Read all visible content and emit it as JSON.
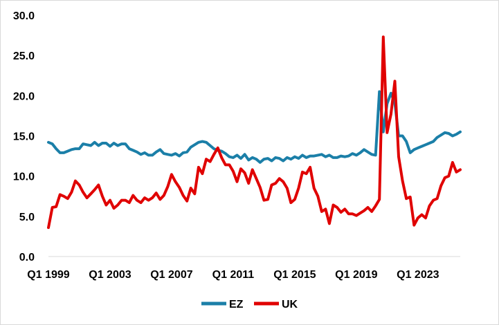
{
  "chart_data": {
    "type": "line",
    "title": "",
    "xlabel": "",
    "ylabel": "",
    "ylim": [
      0,
      30
    ],
    "y_ticks": [
      "0.0",
      "5.0",
      "10.0",
      "15.0",
      "20.0",
      "25.0",
      "30.0"
    ],
    "x_ticks": [
      {
        "label": "Q1 1999",
        "index": 0
      },
      {
        "label": "Q1 2003",
        "index": 16
      },
      {
        "label": "Q1 2007",
        "index": 32
      },
      {
        "label": "Q1 2011",
        "index": 48
      },
      {
        "label": "Q1 2015",
        "index": 64
      },
      {
        "label": "Q1 2019",
        "index": 80
      },
      {
        "label": "Q1 2023",
        "index": 96
      }
    ],
    "grid": false,
    "legend_position": "bottom",
    "series": [
      {
        "name": "EZ",
        "color": "#1b7fa8",
        "values": [
          14.2,
          14.0,
          13.4,
          12.9,
          12.9,
          13.1,
          13.3,
          13.4,
          13.4,
          14.0,
          13.9,
          13.8,
          14.2,
          13.8,
          14.1,
          14.1,
          13.7,
          14.1,
          13.8,
          14.0,
          14.0,
          13.4,
          13.2,
          13.0,
          12.7,
          12.9,
          12.6,
          12.6,
          13.0,
          13.3,
          12.8,
          12.7,
          12.6,
          12.8,
          12.5,
          12.9,
          13.0,
          13.6,
          13.9,
          14.2,
          14.3,
          14.2,
          13.8,
          13.4,
          13.2,
          13.1,
          12.8,
          12.4,
          12.3,
          12.6,
          12.2,
          12.7,
          12.0,
          12.3,
          12.1,
          11.7,
          12.1,
          12.2,
          11.9,
          12.3,
          12.2,
          11.9,
          12.3,
          12.1,
          12.4,
          12.2,
          12.6,
          12.3,
          12.5,
          12.5,
          12.6,
          12.7,
          12.4,
          12.6,
          12.3,
          12.3,
          12.5,
          12.4,
          12.5,
          12.8,
          12.6,
          12.9,
          13.3,
          13.0,
          12.7,
          12.6,
          20.5,
          15.5,
          19.0,
          20.3,
          19.1,
          15.0,
          15.0,
          14.3,
          12.9,
          13.3,
          13.5,
          13.7,
          13.9,
          14.1,
          14.3,
          14.8,
          15.1,
          15.4,
          15.3,
          15.0,
          15.2,
          15.5
        ]
      },
      {
        "name": "UK",
        "color": "#e00000",
        "values": [
          3.6,
          6.1,
          6.2,
          7.7,
          7.5,
          7.2,
          8.0,
          9.4,
          8.9,
          8.0,
          7.3,
          7.8,
          8.3,
          8.9,
          7.5,
          6.4,
          7.0,
          6.0,
          6.4,
          7.0,
          7.0,
          6.7,
          7.6,
          7.0,
          6.7,
          7.3,
          7.0,
          7.3,
          7.9,
          7.1,
          7.6,
          8.7,
          10.2,
          9.3,
          8.6,
          7.6,
          6.9,
          8.5,
          7.8,
          11.1,
          10.3,
          12.1,
          11.8,
          12.7,
          13.5,
          12.3,
          11.4,
          11.4,
          10.6,
          9.3,
          10.9,
          10.4,
          9.1,
          10.8,
          9.7,
          8.6,
          7.0,
          7.1,
          8.9,
          9.1,
          9.7,
          9.3,
          8.5,
          6.7,
          7.1,
          8.5,
          10.5,
          10.3,
          11.1,
          8.5,
          7.5,
          5.6,
          5.9,
          4.1,
          6.4,
          6.1,
          5.5,
          5.9,
          5.3,
          5.3,
          5.1,
          5.4,
          5.7,
          6.1,
          5.6,
          6.3,
          7.1,
          27.3,
          15.4,
          17.7,
          21.8,
          12.4,
          9.4,
          7.2,
          7.4,
          3.9,
          4.8,
          5.2,
          4.8,
          6.3,
          7.0,
          7.2,
          8.8,
          9.8,
          10.0,
          11.7,
          10.5,
          10.8
        ]
      }
    ]
  }
}
